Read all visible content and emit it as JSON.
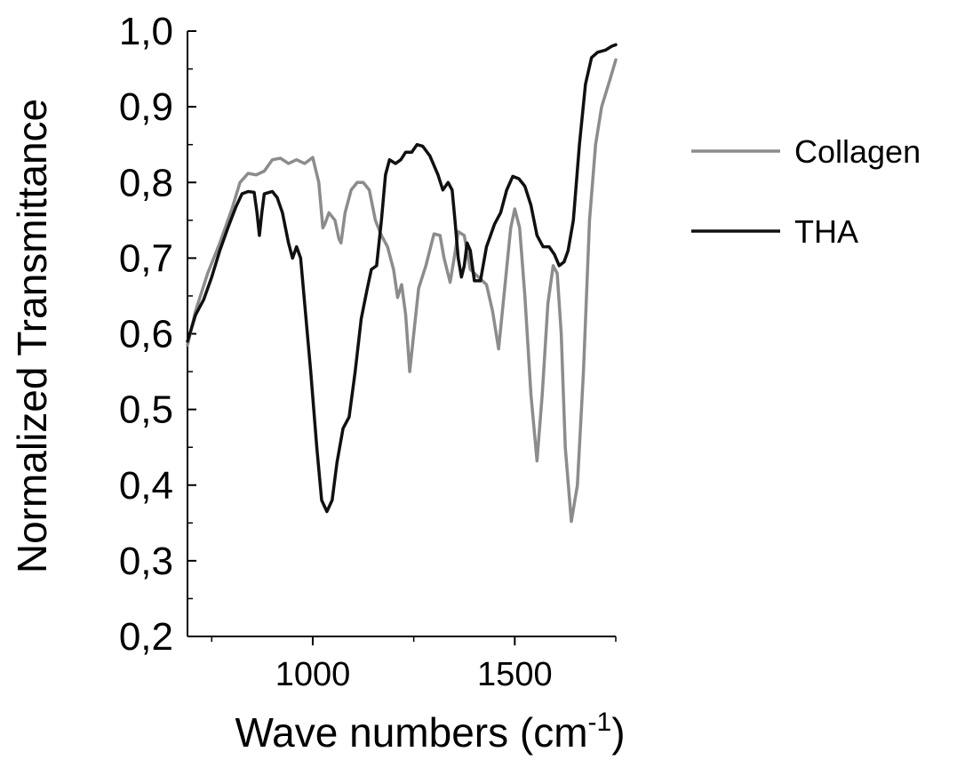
{
  "chart_data": {
    "type": "line",
    "title": "",
    "xlabel": "Wave numbers (cm",
    "xlabel_superscript": "-1",
    "xlabel_suffix": ")",
    "ylabel": "Normalized Transmittance",
    "xlim": [
      690,
      1750
    ],
    "ylim": [
      0.2,
      1.0
    ],
    "x_ticks": [
      {
        "value": 1000,
        "label": "1000"
      },
      {
        "value": 1500,
        "label": "1500"
      }
    ],
    "y_ticks": [
      {
        "value": 0.2,
        "label": "0,2"
      },
      {
        "value": 0.3,
        "label": "0,3"
      },
      {
        "value": 0.4,
        "label": "0,4"
      },
      {
        "value": 0.5,
        "label": "0,5"
      },
      {
        "value": 0.6,
        "label": "0,6"
      },
      {
        "value": 0.7,
        "label": "0,7"
      },
      {
        "value": 0.8,
        "label": "0,8"
      },
      {
        "value": 0.9,
        "label": "0,9"
      },
      {
        "value": 1.0,
        "label": "1,0"
      }
    ],
    "legend_position": "right",
    "series": [
      {
        "name": "Collagen",
        "color": "#8c8c8c",
        "points": [
          [
            690,
            0.585
          ],
          [
            710,
            0.63
          ],
          [
            740,
            0.68
          ],
          [
            770,
            0.72
          ],
          [
            800,
            0.765
          ],
          [
            820,
            0.8
          ],
          [
            840,
            0.812
          ],
          [
            860,
            0.81
          ],
          [
            880,
            0.815
          ],
          [
            900,
            0.83
          ],
          [
            920,
            0.832
          ],
          [
            940,
            0.825
          ],
          [
            960,
            0.83
          ],
          [
            980,
            0.825
          ],
          [
            1000,
            0.833
          ],
          [
            1015,
            0.8
          ],
          [
            1025,
            0.74
          ],
          [
            1030,
            0.745
          ],
          [
            1040,
            0.76
          ],
          [
            1055,
            0.75
          ],
          [
            1065,
            0.725
          ],
          [
            1070,
            0.72
          ],
          [
            1080,
            0.76
          ],
          [
            1095,
            0.79
          ],
          [
            1110,
            0.8
          ],
          [
            1125,
            0.8
          ],
          [
            1140,
            0.79
          ],
          [
            1155,
            0.75
          ],
          [
            1170,
            0.73
          ],
          [
            1185,
            0.715
          ],
          [
            1200,
            0.685
          ],
          [
            1210,
            0.648
          ],
          [
            1220,
            0.665
          ],
          [
            1230,
            0.625
          ],
          [
            1240,
            0.55
          ],
          [
            1250,
            0.6
          ],
          [
            1262,
            0.66
          ],
          [
            1280,
            0.69
          ],
          [
            1300,
            0.732
          ],
          [
            1315,
            0.73
          ],
          [
            1325,
            0.7
          ],
          [
            1340,
            0.668
          ],
          [
            1350,
            0.7
          ],
          [
            1360,
            0.735
          ],
          [
            1375,
            0.73
          ],
          [
            1390,
            0.685
          ],
          [
            1410,
            0.675
          ],
          [
            1430,
            0.665
          ],
          [
            1445,
            0.63
          ],
          [
            1460,
            0.58
          ],
          [
            1475,
            0.66
          ],
          [
            1490,
            0.74
          ],
          [
            1500,
            0.765
          ],
          [
            1512,
            0.74
          ],
          [
            1525,
            0.65
          ],
          [
            1540,
            0.52
          ],
          [
            1555,
            0.432
          ],
          [
            1568,
            0.52
          ],
          [
            1582,
            0.64
          ],
          [
            1595,
            0.69
          ],
          [
            1605,
            0.68
          ],
          [
            1615,
            0.6
          ],
          [
            1625,
            0.45
          ],
          [
            1640,
            0.352
          ],
          [
            1655,
            0.4
          ],
          [
            1670,
            0.55
          ],
          [
            1685,
            0.75
          ],
          [
            1700,
            0.85
          ],
          [
            1715,
            0.9
          ],
          [
            1735,
            0.935
          ],
          [
            1750,
            0.962
          ]
        ]
      },
      {
        "name": "THA",
        "color": "#101010",
        "points": [
          [
            690,
            0.59
          ],
          [
            710,
            0.625
          ],
          [
            730,
            0.645
          ],
          [
            750,
            0.675
          ],
          [
            770,
            0.71
          ],
          [
            790,
            0.74
          ],
          [
            810,
            0.768
          ],
          [
            825,
            0.785
          ],
          [
            840,
            0.788
          ],
          [
            855,
            0.787
          ],
          [
            862,
            0.76
          ],
          [
            868,
            0.73
          ],
          [
            874,
            0.76
          ],
          [
            880,
            0.785
          ],
          [
            900,
            0.788
          ],
          [
            912,
            0.78
          ],
          [
            925,
            0.76
          ],
          [
            940,
            0.72
          ],
          [
            950,
            0.7
          ],
          [
            960,
            0.715
          ],
          [
            970,
            0.7
          ],
          [
            980,
            0.64
          ],
          [
            995,
            0.55
          ],
          [
            1010,
            0.45
          ],
          [
            1022,
            0.38
          ],
          [
            1035,
            0.365
          ],
          [
            1048,
            0.38
          ],
          [
            1060,
            0.43
          ],
          [
            1075,
            0.475
          ],
          [
            1090,
            0.49
          ],
          [
            1105,
            0.55
          ],
          [
            1120,
            0.62
          ],
          [
            1135,
            0.66
          ],
          [
            1145,
            0.685
          ],
          [
            1158,
            0.69
          ],
          [
            1170,
            0.75
          ],
          [
            1180,
            0.81
          ],
          [
            1190,
            0.83
          ],
          [
            1205,
            0.825
          ],
          [
            1218,
            0.83
          ],
          [
            1230,
            0.84
          ],
          [
            1245,
            0.84
          ],
          [
            1258,
            0.85
          ],
          [
            1272,
            0.848
          ],
          [
            1290,
            0.835
          ],
          [
            1310,
            0.81
          ],
          [
            1322,
            0.79
          ],
          [
            1335,
            0.8
          ],
          [
            1345,
            0.79
          ],
          [
            1352,
            0.75
          ],
          [
            1360,
            0.7
          ],
          [
            1368,
            0.675
          ],
          [
            1375,
            0.69
          ],
          [
            1382,
            0.72
          ],
          [
            1390,
            0.71
          ],
          [
            1400,
            0.67
          ],
          [
            1415,
            0.67
          ],
          [
            1430,
            0.715
          ],
          [
            1450,
            0.745
          ],
          [
            1465,
            0.76
          ],
          [
            1480,
            0.79
          ],
          [
            1495,
            0.808
          ],
          [
            1510,
            0.805
          ],
          [
            1525,
            0.795
          ],
          [
            1540,
            0.77
          ],
          [
            1555,
            0.73
          ],
          [
            1570,
            0.715
          ],
          [
            1585,
            0.715
          ],
          [
            1598,
            0.705
          ],
          [
            1610,
            0.69
          ],
          [
            1622,
            0.695
          ],
          [
            1632,
            0.71
          ],
          [
            1645,
            0.75
          ],
          [
            1660,
            0.85
          ],
          [
            1675,
            0.93
          ],
          [
            1690,
            0.965
          ],
          [
            1705,
            0.972
          ],
          [
            1725,
            0.975
          ],
          [
            1740,
            0.98
          ],
          [
            1750,
            0.982
          ]
        ]
      }
    ]
  }
}
